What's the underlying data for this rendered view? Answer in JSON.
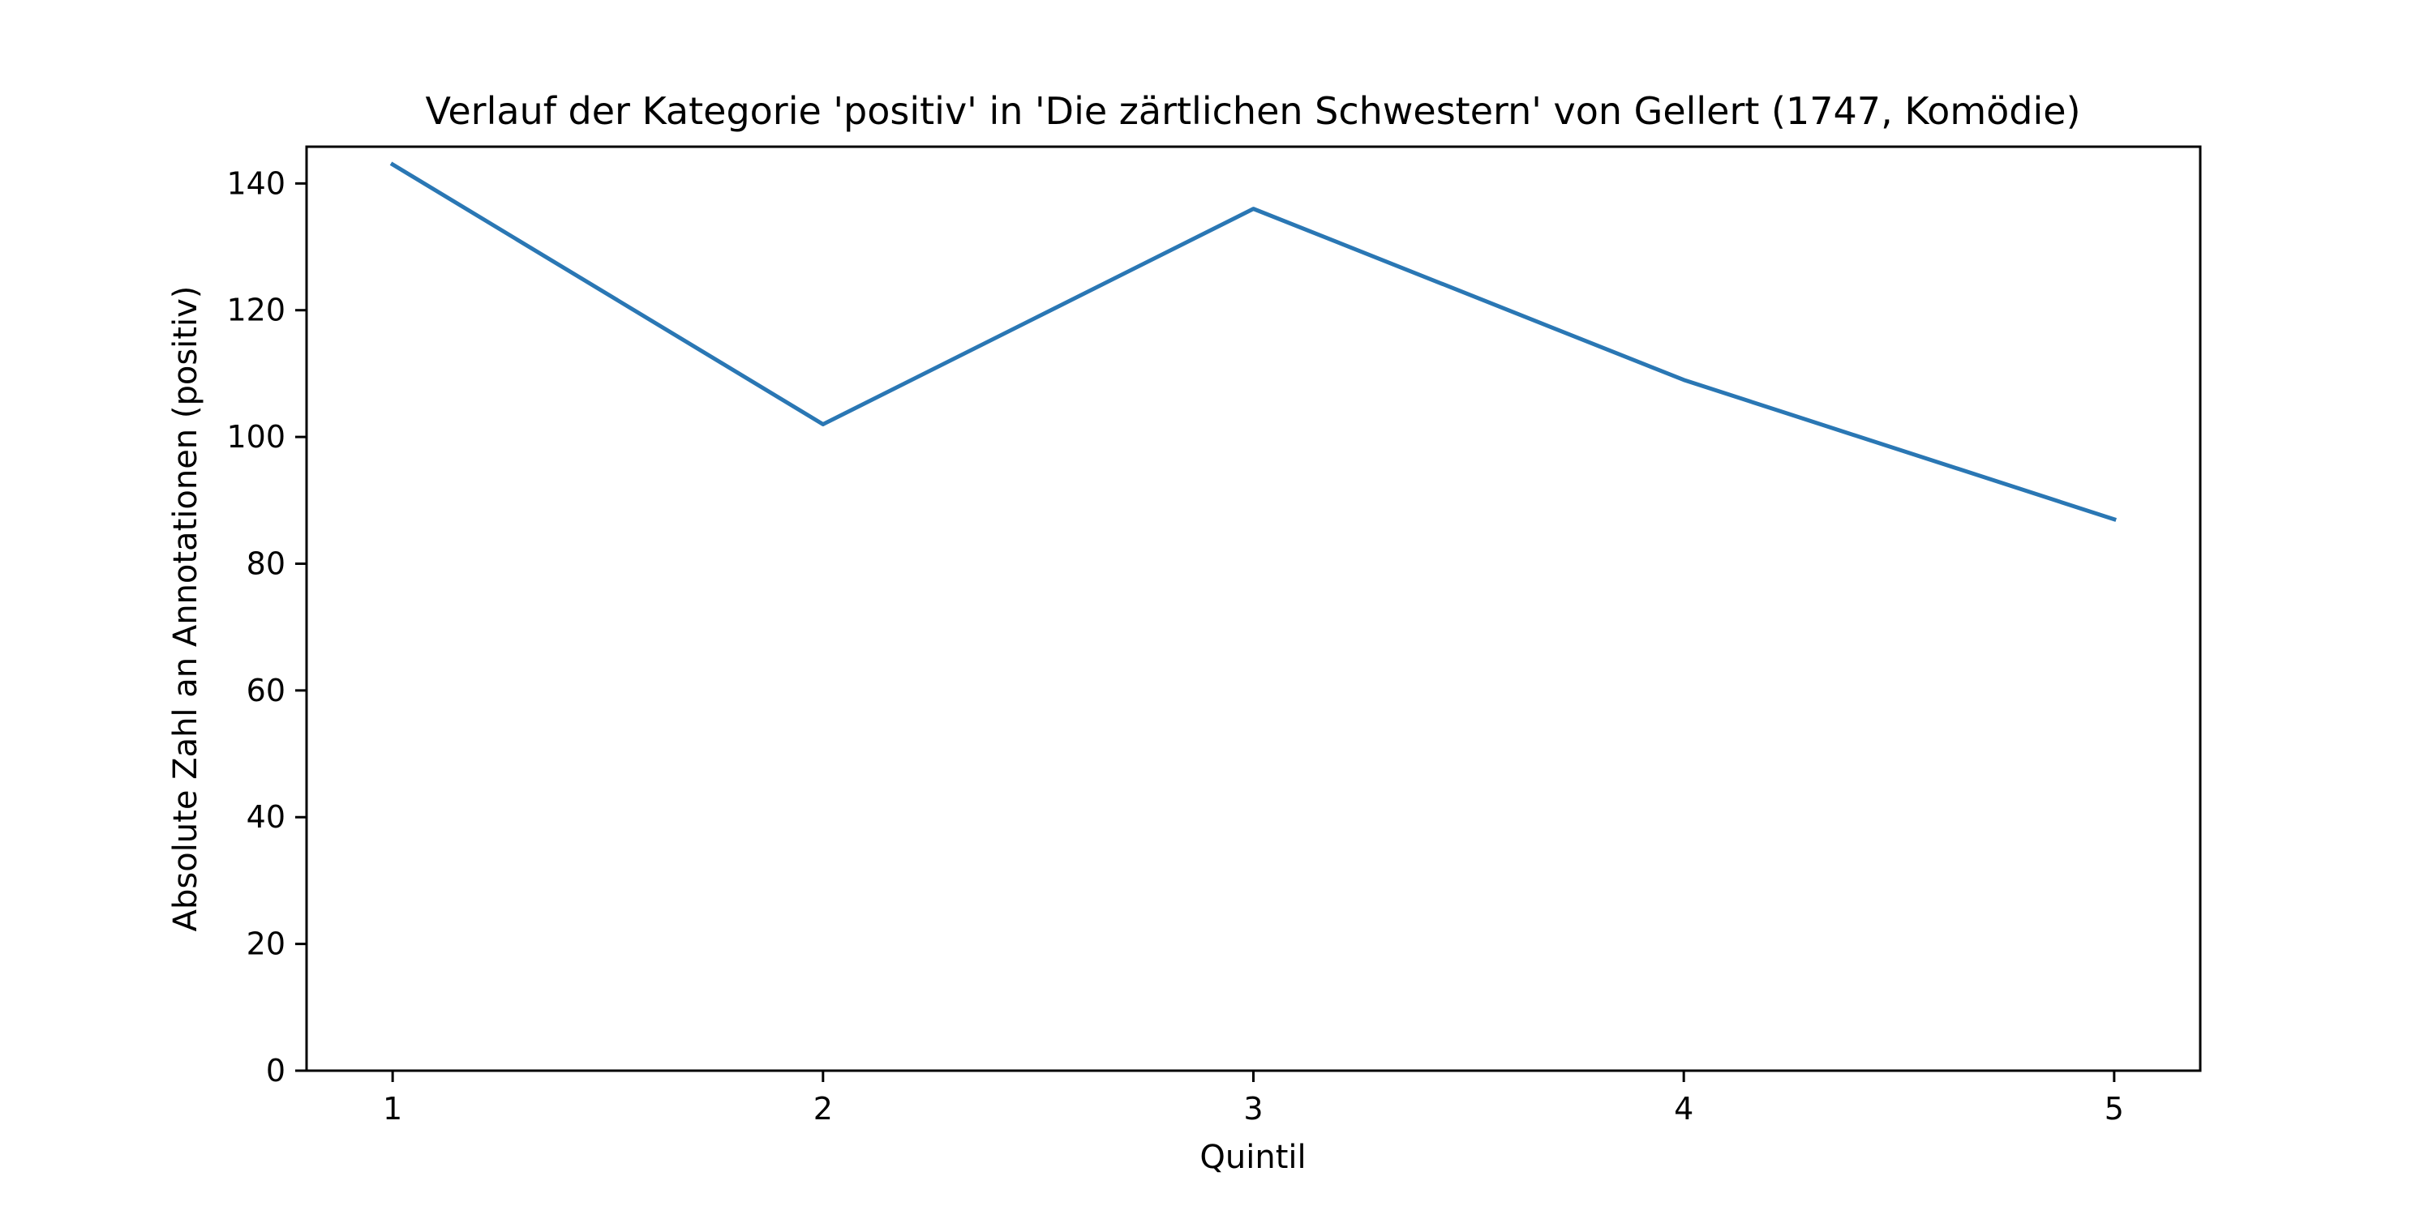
{
  "chart_data": {
    "type": "line",
    "title": "Verlauf der Kategorie 'positiv' in 'Die zärtlichen Schwestern' von Gellert (1747, Komödie)",
    "xlabel": "Quintil",
    "ylabel": "Absolute Zahl an Annotationen (positiv)",
    "x": [
      1,
      2,
      3,
      4,
      5
    ],
    "xticks": [
      "1",
      "2",
      "3",
      "4",
      "5"
    ],
    "series": [
      {
        "values": [
          143,
          102,
          136,
          109,
          87
        ],
        "color": "#2a77b4"
      }
    ],
    "xlim": [
      0.8,
      5.2
    ],
    "ylim": [
      0,
      145.8
    ],
    "yticks": [
      0,
      20,
      40,
      60,
      80,
      100,
      120,
      140
    ],
    "grid": false,
    "legend": "none"
  }
}
